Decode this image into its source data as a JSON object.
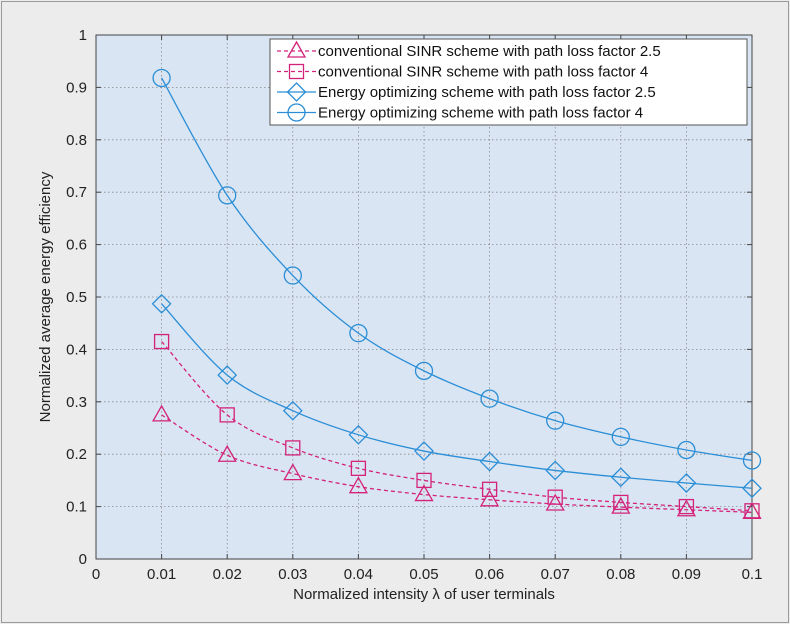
{
  "chart_data": {
    "type": "line",
    "title": "",
    "xlabel": "Normalized intensity λ of user terminals",
    "ylabel": "Normalized average energy efficiency",
    "xlim": [
      0,
      0.1
    ],
    "ylim": [
      0,
      1
    ],
    "xticks": [
      "0",
      "0.01",
      "0.02",
      "0.03",
      "0.04",
      "0.05",
      "0.06",
      "0.07",
      "0.08",
      "0.09",
      "0.1"
    ],
    "yticks": [
      "0",
      "0.1",
      "0.2",
      "0.3",
      "0.4",
      "0.5",
      "0.6",
      "0.7",
      "0.8",
      "0.9",
      "1"
    ],
    "grid": true,
    "legend_position": "top-right",
    "x": [
      0.01,
      0.02,
      0.03,
      0.04,
      0.05,
      0.06,
      0.07,
      0.08,
      0.09,
      0.1
    ],
    "series": [
      {
        "name": "conventional SINR scheme with path loss factor 2.5",
        "color": "#d4227a",
        "marker": "triangle",
        "line": "dashed",
        "values": [
          0.275,
          0.198,
          0.163,
          0.138,
          0.123,
          0.113,
          0.105,
          0.099,
          0.094,
          0.089
        ]
      },
      {
        "name": "conventional SINR scheme with path loss factor 4",
        "color": "#d4227a",
        "marker": "square",
        "line": "dashed",
        "values": [
          0.415,
          0.275,
          0.212,
          0.173,
          0.15,
          0.133,
          0.118,
          0.108,
          0.1,
          0.092
        ]
      },
      {
        "name": "Energy optimizing scheme with path loss factor 2.5",
        "color": "#2b8ed6",
        "marker": "diamond",
        "line": "solid",
        "values": [
          0.487,
          0.351,
          0.283,
          0.237,
          0.206,
          0.186,
          0.169,
          0.156,
          0.145,
          0.135
        ]
      },
      {
        "name": "Energy optimizing scheme with path loss factor 4",
        "color": "#2b8ed6",
        "marker": "circle",
        "line": "solid",
        "values": [
          0.918,
          0.694,
          0.541,
          0.431,
          0.359,
          0.306,
          0.264,
          0.233,
          0.208,
          0.188
        ]
      }
    ]
  }
}
